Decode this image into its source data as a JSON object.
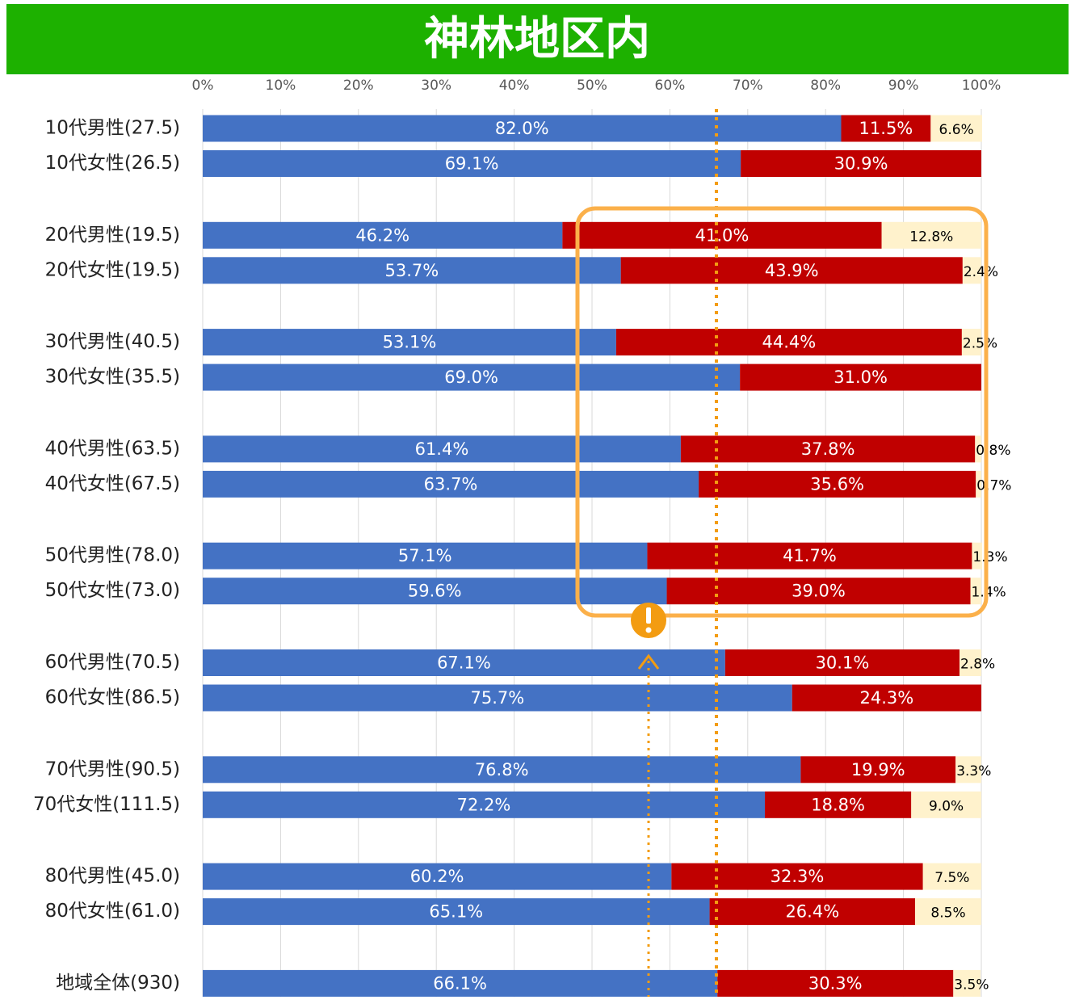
{
  "chart_data": {
    "type": "stacked_bar_horizontal",
    "title": "神林地区内",
    "categories": [
      "10代男性(27.5)",
      "10代女性(26.5)",
      "20代男性(19.5)",
      "20代女性(19.5)",
      "30代男性(40.5)",
      "30代女性(35.5)",
      "40代男性(63.5)",
      "40代女性(67.5)",
      "50代男性(78.0)",
      "50代女性(73.0)",
      "60代男性(70.5)",
      "60代女性(86.5)",
      "70代男性(90.5)",
      "70代女性(111.5)",
      "80代男性(45.0)",
      "80代女性(61.0)",
      "地域全体(930)"
    ],
    "series": [
      {
        "color": "#4472c4",
        "values": [
          82.0,
          69.1,
          46.2,
          53.7,
          53.1,
          69.0,
          61.4,
          63.7,
          57.1,
          59.6,
          67.1,
          75.7,
          76.8,
          72.2,
          60.2,
          65.1,
          66.1
        ],
        "value_labels": [
          "82.0%",
          "69.1%",
          "46.2%",
          "53.7%",
          "53.1%",
          "69.0%",
          "61.4%",
          "63.7%",
          "57.1%",
          "59.6%",
          "67.1%",
          "75.7%",
          "76.8%",
          "72.2%",
          "60.2%",
          "65.1%",
          "66.1%"
        ]
      },
      {
        "color": "#c00000",
        "values": [
          11.5,
          30.9,
          41.0,
          43.9,
          44.4,
          31.0,
          37.8,
          35.6,
          41.7,
          39.0,
          30.1,
          24.3,
          19.9,
          18.8,
          32.3,
          26.4,
          30.3
        ],
        "value_labels": [
          "11.5%",
          "30.9%",
          "41.0%",
          "43.9%",
          "44.4%",
          "31.0%",
          "37.8%",
          "35.6%",
          "41.7%",
          "39.0%",
          "30.1%",
          "24.3%",
          "19.9%",
          "18.8%",
          "32.3%",
          "26.4%",
          "30.3%"
        ]
      },
      {
        "color": "#fff2cc",
        "values": [
          6.6,
          null,
          12.8,
          2.4,
          2.5,
          null,
          0.8,
          0.7,
          1.3,
          1.4,
          2.8,
          null,
          3.3,
          9.0,
          7.5,
          8.5,
          3.5
        ],
        "value_labels": [
          "6.6%",
          null,
          "12.8%",
          "2.4%",
          "2.5%",
          null,
          "0.8%",
          "0.7%",
          "1.3%",
          "1.4%",
          "2.8%",
          null,
          "3.3%",
          "9.0%",
          "7.5%",
          "8.5%",
          "3.5%"
        ]
      }
    ],
    "xlim": [
      0,
      100
    ],
    "xticks": [
      {
        "value": 0,
        "label": "0%"
      },
      {
        "value": 10,
        "label": "10%"
      },
      {
        "value": 20,
        "label": "20%"
      },
      {
        "value": 30,
        "label": "30%"
      },
      {
        "value": 40,
        "label": "40%"
      },
      {
        "value": 50,
        "label": "50%"
      },
      {
        "value": 60,
        "label": "60%"
      },
      {
        "value": 70,
        "label": "70%"
      },
      {
        "value": 80,
        "label": "80%"
      },
      {
        "value": 90,
        "label": "90%"
      },
      {
        "value": 100,
        "label": "100%"
      }
    ],
    "grid": true
  }
}
